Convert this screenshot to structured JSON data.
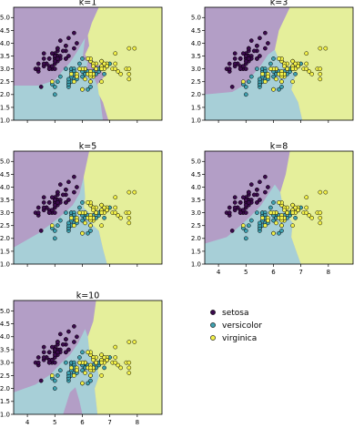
{
  "colors": {
    "setosa_region": "#b39ec6",
    "versicolor_region": "#a7cfd7",
    "virginica_region": "#e5ef9b",
    "setosa_point": "#3b0a4d",
    "versicolor_point": "#3fa1b0",
    "virginica_point": "#f3f14a"
  },
  "legend": [
    "setosa",
    "versicolor",
    "virginica"
  ],
  "chart_data": [
    {
      "type": "scatter",
      "title": "k=1",
      "xlim": [
        3.5,
        8.9
      ],
      "ylim": [
        1.0,
        5.4
      ],
      "yticks": [
        "1.0",
        "1.5",
        "2.0",
        "2.5",
        "3.0",
        "3.5",
        "4.0",
        "4.5",
        "5.0"
      ],
      "xticks": []
    },
    {
      "type": "scatter",
      "title": "k=3",
      "xlim": [
        3.5,
        8.9
      ],
      "ylim": [
        1.0,
        5.4
      ],
      "yticks": [
        "1.0",
        "1.5",
        "2.0",
        "2.5",
        "3.0",
        "3.5",
        "4.0",
        "4.5",
        "5.0"
      ],
      "xticks": []
    },
    {
      "type": "scatter",
      "title": "k=5",
      "xlim": [
        3.5,
        8.9
      ],
      "ylim": [
        1.0,
        5.4
      ],
      "yticks": [
        "1.0",
        "1.5",
        "2.0",
        "2.5",
        "3.0",
        "3.5",
        "4.0",
        "4.5",
        "5.0"
      ],
      "xticks": []
    },
    {
      "type": "scatter",
      "title": "k=8",
      "xlim": [
        3.5,
        8.9
      ],
      "ylim": [
        1.0,
        5.4
      ],
      "yticks": [
        "1.0",
        "1.5",
        "2.0",
        "2.5",
        "3.0",
        "3.5",
        "4.0",
        "4.5",
        "5.0"
      ],
      "xticks": [
        "4",
        "5",
        "6",
        "7",
        "8"
      ]
    },
    {
      "type": "scatter",
      "title": "k=10",
      "xlim": [
        3.5,
        8.9
      ],
      "ylim": [
        1.0,
        5.4
      ],
      "yticks": [
        "1.0",
        "1.5",
        "2.0",
        "2.5",
        "3.0",
        "3.5",
        "4.0",
        "4.5",
        "5.0"
      ],
      "xticks": [
        "4",
        "5",
        "6",
        "7",
        "8"
      ]
    }
  ],
  "points": {
    "setosa": [
      [
        5.1,
        3.5
      ],
      [
        4.9,
        3.0
      ],
      [
        4.7,
        3.2
      ],
      [
        4.6,
        3.1
      ],
      [
        5.0,
        3.6
      ],
      [
        5.4,
        3.9
      ],
      [
        4.6,
        3.4
      ],
      [
        5.0,
        3.4
      ],
      [
        4.4,
        2.9
      ],
      [
        4.9,
        3.1
      ],
      [
        5.4,
        3.7
      ],
      [
        4.8,
        3.4
      ],
      [
        4.8,
        3.0
      ],
      [
        4.3,
        3.0
      ],
      [
        5.8,
        4.0
      ],
      [
        5.7,
        4.4
      ],
      [
        5.4,
        3.9
      ],
      [
        5.1,
        3.5
      ],
      [
        5.7,
        3.8
      ],
      [
        5.1,
        3.8
      ],
      [
        5.4,
        3.4
      ],
      [
        5.1,
        3.7
      ],
      [
        4.6,
        3.6
      ],
      [
        5.1,
        3.3
      ],
      [
        4.8,
        3.4
      ],
      [
        5.0,
        3.0
      ],
      [
        5.0,
        3.4
      ],
      [
        5.2,
        3.5
      ],
      [
        5.2,
        3.4
      ],
      [
        4.7,
        3.2
      ],
      [
        4.8,
        3.1
      ],
      [
        5.4,
        3.4
      ],
      [
        5.2,
        4.1
      ],
      [
        5.5,
        4.2
      ],
      [
        4.9,
        3.1
      ],
      [
        5.0,
        3.2
      ],
      [
        5.5,
        3.5
      ],
      [
        4.9,
        3.6
      ],
      [
        4.4,
        3.0
      ],
      [
        5.1,
        3.4
      ],
      [
        5.0,
        3.5
      ],
      [
        4.5,
        2.3
      ],
      [
        4.4,
        3.2
      ],
      [
        5.0,
        3.5
      ],
      [
        5.1,
        3.8
      ],
      [
        4.8,
        3.0
      ],
      [
        5.1,
        3.8
      ],
      [
        4.6,
        3.2
      ],
      [
        5.3,
        3.7
      ],
      [
        5.0,
        3.3
      ]
    ],
    "versicolor": [
      [
        7.0,
        3.2
      ],
      [
        6.4,
        3.2
      ],
      [
        6.9,
        3.1
      ],
      [
        5.5,
        2.3
      ],
      [
        6.5,
        2.8
      ],
      [
        5.7,
        2.8
      ],
      [
        6.3,
        3.3
      ],
      [
        4.9,
        2.4
      ],
      [
        6.6,
        2.9
      ],
      [
        5.2,
        2.7
      ],
      [
        5.0,
        2.0
      ],
      [
        5.9,
        3.0
      ],
      [
        6.0,
        2.2
      ],
      [
        6.1,
        2.9
      ],
      [
        5.6,
        2.9
      ],
      [
        6.7,
        3.1
      ],
      [
        5.6,
        3.0
      ],
      [
        5.8,
        2.7
      ],
      [
        6.2,
        2.2
      ],
      [
        5.6,
        2.5
      ],
      [
        5.9,
        3.2
      ],
      [
        6.1,
        2.8
      ],
      [
        6.3,
        2.5
      ],
      [
        6.1,
        2.8
      ],
      [
        6.4,
        2.9
      ],
      [
        6.6,
        3.0
      ],
      [
        6.8,
        2.8
      ],
      [
        6.7,
        3.0
      ],
      [
        6.0,
        2.9
      ],
      [
        5.7,
        2.6
      ],
      [
        5.5,
        2.4
      ],
      [
        5.5,
        2.4
      ],
      [
        5.8,
        2.7
      ],
      [
        6.0,
        2.7
      ],
      [
        5.4,
        3.0
      ],
      [
        6.0,
        3.4
      ],
      [
        6.7,
        3.1
      ],
      [
        6.3,
        2.3
      ],
      [
        5.6,
        3.0
      ],
      [
        5.5,
        2.5
      ],
      [
        5.5,
        2.6
      ],
      [
        6.1,
        3.0
      ],
      [
        5.8,
        2.6
      ],
      [
        5.0,
        2.3
      ],
      [
        5.6,
        2.7
      ],
      [
        5.7,
        3.0
      ],
      [
        5.7,
        2.9
      ],
      [
        6.2,
        2.9
      ],
      [
        5.1,
        2.5
      ],
      [
        5.7,
        2.8
      ]
    ],
    "virginica": [
      [
        6.3,
        3.3
      ],
      [
        5.8,
        2.7
      ],
      [
        7.1,
        3.0
      ],
      [
        6.3,
        2.9
      ],
      [
        6.5,
        3.0
      ],
      [
        7.6,
        3.0
      ],
      [
        4.9,
        2.5
      ],
      [
        7.3,
        2.9
      ],
      [
        6.7,
        2.5
      ],
      [
        7.2,
        3.6
      ],
      [
        6.5,
        3.2
      ],
      [
        6.4,
        2.7
      ],
      [
        6.8,
        3.0
      ],
      [
        5.7,
        2.5
      ],
      [
        5.8,
        2.8
      ],
      [
        6.4,
        3.2
      ],
      [
        6.5,
        3.0
      ],
      [
        7.7,
        3.8
      ],
      [
        7.7,
        2.6
      ],
      [
        6.0,
        2.2
      ],
      [
        6.9,
        3.2
      ],
      [
        5.6,
        2.8
      ],
      [
        7.7,
        2.8
      ],
      [
        6.3,
        2.7
      ],
      [
        6.7,
        3.3
      ],
      [
        7.2,
        3.2
      ],
      [
        6.2,
        2.8
      ],
      [
        6.1,
        3.0
      ],
      [
        6.4,
        2.8
      ],
      [
        7.2,
        3.0
      ],
      [
        7.4,
        2.8
      ],
      [
        7.9,
        3.8
      ],
      [
        6.4,
        2.8
      ],
      [
        6.3,
        2.8
      ],
      [
        6.1,
        2.6
      ],
      [
        7.7,
        3.0
      ],
      [
        6.3,
        3.4
      ],
      [
        6.4,
        3.1
      ],
      [
        6.0,
        3.0
      ],
      [
        6.9,
        3.1
      ],
      [
        6.7,
        3.1
      ],
      [
        6.9,
        3.1
      ],
      [
        5.8,
        2.7
      ],
      [
        6.8,
        3.2
      ],
      [
        6.7,
        3.3
      ],
      [
        6.7,
        3.0
      ],
      [
        6.3,
        2.5
      ],
      [
        6.5,
        3.0
      ],
      [
        6.2,
        3.4
      ],
      [
        5.9,
        3.0
      ]
    ]
  }
}
